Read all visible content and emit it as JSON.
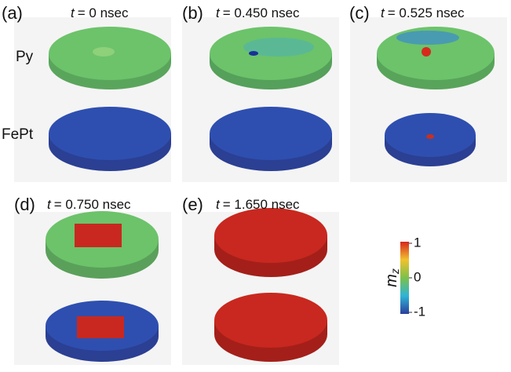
{
  "panels": [
    {
      "label": "(a)",
      "time_symbol": "t",
      "time_value": "= 0 nsec"
    },
    {
      "label": "(b)",
      "time_symbol": "t",
      "time_value": "= 0.450 nsec"
    },
    {
      "label": "(c)",
      "time_symbol": "t",
      "time_value": "= 0.525 nsec"
    },
    {
      "label": "(d)",
      "time_symbol": "t",
      "time_value": "= 0.750 nsec"
    },
    {
      "label": "(e)",
      "time_symbol": "t",
      "time_value": "= 1.650 nsec"
    }
  ],
  "layers": [
    "Py",
    "FePt"
  ],
  "colorbar": {
    "label": "m",
    "label_sub": "z",
    "ticks": [
      {
        "value": 1,
        "label": "1"
      },
      {
        "value": 0,
        "label": "0"
      },
      {
        "value": -1,
        "label": "-1"
      }
    ]
  }
}
